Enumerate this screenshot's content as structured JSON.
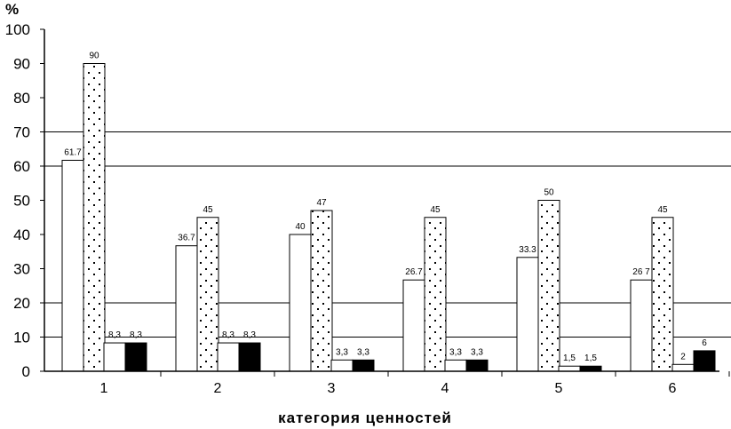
{
  "chart_data": {
    "type": "bar",
    "title": "",
    "ylabel": "%",
    "xlabel": "категория ценностей",
    "ylim": [
      0,
      100
    ],
    "yticks": [
      0,
      10,
      20,
      30,
      40,
      50,
      60,
      70,
      80,
      90,
      100
    ],
    "gridlines_at": [
      10,
      20,
      60,
      70
    ],
    "categories": [
      "1",
      "2",
      "3",
      "4",
      "5",
      "6"
    ],
    "series": [
      {
        "values": [
          61.7,
          36.7,
          40,
          26.7,
          33.3,
          26.7
        ],
        "labels": [
          "61.7",
          "36.7",
          "40",
          "26.7",
          "33.3",
          "26 7"
        ],
        "fill": "white"
      },
      {
        "values": [
          90,
          45,
          47,
          45,
          50,
          45
        ],
        "labels": [
          "90",
          "45",
          "47",
          "45",
          "50",
          "45"
        ],
        "fill": "dotted"
      },
      {
        "values": [
          8.3,
          8.3,
          3.3,
          3.3,
          1.5,
          2
        ],
        "labels": [
          "8,3",
          "8,3",
          "3,3",
          "3,3",
          "1,5",
          "2"
        ],
        "fill": "white"
      },
      {
        "values": [
          8.3,
          8.3,
          3.3,
          3.3,
          1.5,
          6
        ],
        "labels": [
          "8,3",
          "8,3",
          "3,3",
          "3,3",
          "1,5",
          "6"
        ],
        "fill": "#000000"
      }
    ]
  }
}
